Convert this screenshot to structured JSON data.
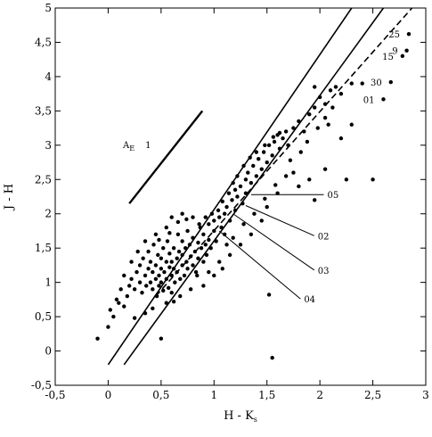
{
  "chart_data": {
    "type": "scatter",
    "xlabel": "H - K",
    "xlabel_sub": "s",
    "ylabel": "J - H",
    "xlim": [
      -0.5,
      3
    ],
    "ylim": [
      -0.5,
      5
    ],
    "xticks": [
      -0.5,
      0,
      0.5,
      1,
      1.5,
      2,
      2.5,
      3
    ],
    "xtick_labels": [
      "-0,5",
      "0",
      "0,5",
      "1",
      "1,5",
      "2",
      "2,5",
      "3"
    ],
    "yticks": [
      -0.5,
      0,
      0.5,
      1,
      1.5,
      2,
      2.5,
      3,
      3.5,
      4,
      4.5,
      5
    ],
    "ytick_labels": [
      "-0,5",
      "0",
      "0,5",
      "1",
      "1,5",
      "2",
      "2,5",
      "3",
      "3,5",
      "4",
      "4,5",
      "5"
    ],
    "grid": false,
    "reddening_vector": {
      "label_main": "A",
      "label_sub": "E",
      "label_value": "1",
      "from": [
        0.2,
        2.15
      ],
      "to": [
        0.89,
        3.5
      ]
    },
    "reference_lines": [
      {
        "name": "",
        "style": "solid",
        "from": [
          0.0,
          -0.2
        ],
        "to": [
          2.3,
          5.0
        ]
      },
      {
        "name": "",
        "style": "solid",
        "from": [
          0.15,
          -0.2
        ],
        "to": [
          2.6,
          5.0
        ]
      },
      {
        "name": "",
        "style": "dashed",
        "from": [
          0.45,
          0.8
        ],
        "to": [
          2.87,
          5.0
        ]
      }
    ],
    "labeled_points": [
      {
        "label": "25",
        "x": 2.84,
        "y": 4.62
      },
      {
        "label": "9",
        "x": 2.82,
        "y": 4.38
      },
      {
        "label": "15",
        "x": 2.78,
        "y": 4.3
      },
      {
        "label": "30",
        "x": 2.67,
        "y": 3.92
      },
      {
        "label": "01",
        "x": 2.6,
        "y": 3.67
      }
    ],
    "callouts": [
      {
        "label": "05",
        "point": [
          1.35,
          2.28
        ],
        "text_at": [
          2.07,
          2.28
        ]
      },
      {
        "label": "02",
        "point": [
          1.3,
          2.12
        ],
        "text_at": [
          1.98,
          1.68
        ]
      },
      {
        "label": "03",
        "point": [
          1.18,
          2.0
        ],
        "text_at": [
          1.98,
          1.18
        ]
      },
      {
        "label": "04",
        "point": [
          1.05,
          1.75
        ],
        "text_at": [
          1.85,
          0.76
        ]
      }
    ],
    "points": [
      [
        -0.1,
        0.18
      ],
      [
        0.0,
        0.35
      ],
      [
        0.05,
        0.5
      ],
      [
        0.02,
        0.6
      ],
      [
        0.1,
        0.7
      ],
      [
        0.15,
        0.65
      ],
      [
        0.18,
        0.8
      ],
      [
        0.2,
        0.95
      ],
      [
        0.22,
        1.05
      ],
      [
        0.25,
        0.9
      ],
      [
        0.27,
        1.15
      ],
      [
        0.3,
        1.0
      ],
      [
        0.3,
        1.25
      ],
      [
        0.32,
        0.85
      ],
      [
        0.33,
        1.35
      ],
      [
        0.35,
        1.1
      ],
      [
        0.36,
        0.95
      ],
      [
        0.38,
        1.2
      ],
      [
        0.38,
        1.45
      ],
      [
        0.4,
        1.0
      ],
      [
        0.4,
        1.3
      ],
      [
        0.42,
        0.9
      ],
      [
        0.42,
        1.15
      ],
      [
        0.43,
        1.55
      ],
      [
        0.45,
        1.05
      ],
      [
        0.45,
        1.25
      ],
      [
        0.46,
        0.8
      ],
      [
        0.47,
        1.4
      ],
      [
        0.48,
        1.1
      ],
      [
        0.48,
        0.95
      ],
      [
        0.5,
        1.2
      ],
      [
        0.5,
        1.35
      ],
      [
        0.5,
        1.0
      ],
      [
        0.52,
        1.5
      ],
      [
        0.52,
        0.88
      ],
      [
        0.53,
        1.15
      ],
      [
        0.55,
        1.3
      ],
      [
        0.55,
        1.05
      ],
      [
        0.56,
        1.6
      ],
      [
        0.57,
        0.92
      ],
      [
        0.58,
        1.22
      ],
      [
        0.58,
        1.42
      ],
      [
        0.6,
        1.1
      ],
      [
        0.6,
        1.3
      ],
      [
        0.6,
        0.85
      ],
      [
        0.62,
        1.5
      ],
      [
        0.62,
        1.2
      ],
      [
        0.63,
        1.0
      ],
      [
        0.65,
        1.35
      ],
      [
        0.65,
        1.15
      ],
      [
        0.66,
        1.7
      ],
      [
        0.67,
        1.45
      ],
      [
        0.68,
        1.05
      ],
      [
        0.7,
        1.25
      ],
      [
        0.7,
        1.6
      ],
      [
        0.7,
        1.4
      ],
      [
        0.72,
        1.1
      ],
      [
        0.73,
        1.5
      ],
      [
        0.74,
        1.3
      ],
      [
        0.75,
        1.75
      ],
      [
        0.75,
        1.2
      ],
      [
        0.77,
        1.55
      ],
      [
        0.78,
        1.38
      ],
      [
        0.8,
        1.65
      ],
      [
        0.8,
        1.25
      ],
      [
        0.82,
        1.45
      ],
      [
        0.83,
        1.15
      ],
      [
        0.85,
        1.58
      ],
      [
        0.85,
        1.35
      ],
      [
        0.87,
        1.8
      ],
      [
        0.88,
        1.5
      ],
      [
        0.9,
        1.3
      ],
      [
        0.9,
        1.7
      ],
      [
        0.92,
        1.55
      ],
      [
        0.93,
        1.4
      ],
      [
        0.95,
        1.85
      ],
      [
        0.95,
        1.62
      ],
      [
        0.97,
        1.5
      ],
      [
        1.0,
        1.75
      ],
      [
        1.0,
        1.9
      ],
      [
        1.02,
        1.6
      ],
      [
        1.05,
        1.95
      ],
      [
        1.07,
        1.8
      ],
      [
        1.1,
        2.0
      ],
      [
        1.1,
        1.7
      ],
      [
        1.12,
        2.1
      ],
      [
        1.15,
        1.9
      ],
      [
        1.17,
        2.2
      ],
      [
        1.2,
        2.05
      ],
      [
        1.2,
        2.35
      ],
      [
        1.22,
        2.25
      ],
      [
        1.25,
        2.4
      ],
      [
        1.27,
        2.15
      ],
      [
        1.3,
        2.5
      ],
      [
        1.3,
        2.3
      ],
      [
        1.32,
        2.6
      ],
      [
        1.35,
        2.45
      ],
      [
        1.37,
        2.7
      ],
      [
        1.4,
        2.55
      ],
      [
        1.42,
        2.8
      ],
      [
        1.45,
        2.65
      ],
      [
        1.47,
        2.9
      ],
      [
        1.5,
        2.75
      ],
      [
        1.52,
        3.0
      ],
      [
        1.55,
        2.85
      ],
      [
        1.57,
        3.05
      ],
      [
        1.6,
        3.15
      ],
      [
        1.62,
        2.95
      ],
      [
        1.65,
        3.1
      ],
      [
        1.68,
        3.2
      ],
      [
        1.7,
        3.0
      ],
      [
        1.75,
        3.25
      ],
      [
        1.8,
        3.35
      ],
      [
        1.85,
        3.2
      ],
      [
        1.9,
        3.45
      ],
      [
        1.95,
        3.55
      ],
      [
        2.0,
        3.7
      ],
      [
        2.05,
        3.6
      ],
      [
        2.1,
        3.8
      ],
      [
        2.15,
        3.85
      ],
      [
        2.2,
        3.75
      ],
      [
        2.3,
        3.9
      ],
      [
        2.4,
        3.9
      ],
      [
        1.95,
        3.85
      ],
      [
        2.05,
        3.4
      ],
      [
        1.75,
        2.6
      ],
      [
        1.6,
        2.3
      ],
      [
        1.5,
        2.1
      ],
      [
        1.45,
        1.9
      ],
      [
        1.35,
        1.7
      ],
      [
        1.25,
        1.55
      ],
      [
        1.15,
        1.4
      ],
      [
        1.05,
        1.3
      ],
      [
        0.95,
        1.15
      ],
      [
        1.8,
        2.4
      ],
      [
        1.9,
        2.5
      ],
      [
        1.95,
        2.2
      ],
      [
        2.05,
        2.65
      ],
      [
        2.2,
        3.1
      ],
      [
        2.3,
        3.3
      ],
      [
        2.5,
        2.5
      ],
      [
        2.25,
        2.5
      ],
      [
        1.52,
        0.82
      ],
      [
        1.55,
        -0.1
      ],
      [
        0.5,
        0.18
      ],
      [
        0.35,
        0.55
      ],
      [
        0.25,
        0.48
      ],
      [
        0.42,
        0.62
      ],
      [
        0.55,
        0.7
      ],
      [
        0.62,
        0.72
      ],
      [
        0.68,
        0.8
      ],
      [
        0.28,
        1.45
      ],
      [
        0.22,
        1.3
      ],
      [
        0.15,
        1.1
      ],
      [
        0.12,
        0.9
      ],
      [
        0.08,
        0.75
      ],
      [
        0.35,
        1.6
      ],
      [
        0.45,
        1.7
      ],
      [
        0.55,
        1.8
      ],
      [
        0.6,
        1.95
      ],
      [
        0.7,
        2.0
      ],
      [
        0.8,
        1.95
      ],
      [
        0.48,
        1.62
      ],
      [
        0.58,
        1.72
      ],
      [
        0.66,
        1.88
      ],
      [
        0.74,
        1.92
      ],
      [
        0.84,
        1.1
      ],
      [
        0.9,
        0.95
      ],
      [
        0.78,
        0.9
      ],
      [
        1.0,
        1.1
      ],
      [
        1.08,
        1.2
      ],
      [
        1.12,
        1.55
      ],
      [
        1.18,
        1.65
      ],
      [
        1.28,
        1.85
      ],
      [
        1.38,
        2.0
      ],
      [
        1.48,
        2.22
      ],
      [
        1.58,
        2.42
      ],
      [
        1.68,
        2.55
      ],
      [
        1.72,
        2.78
      ],
      [
        1.82,
        2.9
      ],
      [
        1.88,
        3.05
      ],
      [
        1.98,
        3.25
      ],
      [
        2.08,
        3.3
      ],
      [
        2.12,
        3.55
      ],
      [
        1.62,
        3.18
      ],
      [
        1.56,
        3.12
      ],
      [
        1.48,
        3.0
      ],
      [
        1.4,
        2.9
      ],
      [
        1.34,
        2.82
      ],
      [
        1.28,
        2.7
      ],
      [
        1.22,
        2.55
      ],
      [
        1.18,
        2.45
      ],
      [
        1.14,
        2.3
      ],
      [
        1.08,
        2.18
      ],
      [
        1.04,
        2.05
      ],
      [
        0.98,
        2.0
      ],
      [
        0.92,
        1.95
      ],
      [
        0.86,
        1.85
      ]
    ]
  }
}
